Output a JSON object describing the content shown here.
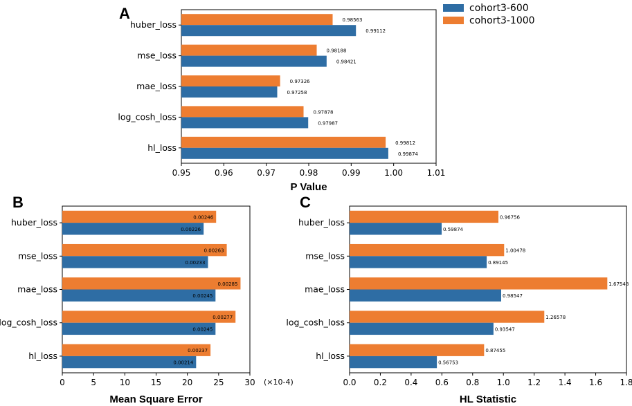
{
  "legend": {
    "items": [
      {
        "label": "cohort3-600",
        "color": "#2e6da4"
      },
      {
        "label": "cohort3-1000",
        "color": "#ed7d31"
      }
    ]
  },
  "chart_data": [
    {
      "panel": "A",
      "type": "bar",
      "orientation": "horizontal",
      "categories": [
        "huber_loss",
        "mse_loss",
        "mae_loss",
        "log_cosh_loss",
        "hl_loss"
      ],
      "series": [
        {
          "name": "cohort3-1000",
          "values": [
            0.98563,
            0.98188,
            0.97326,
            0.97878,
            0.99812
          ],
          "labels": [
            "0.98563",
            "0.98188",
            "0.97326",
            "0.97878",
            "0.99812"
          ]
        },
        {
          "name": "cohort3-600",
          "values": [
            0.99112,
            0.98421,
            0.97258,
            0.97987,
            0.99874
          ],
          "labels": [
            "0.99112",
            "0.98421",
            "0.97258",
            "0.97987",
            "0.99874"
          ]
        }
      ],
      "xlabel": "P Value",
      "xlim": [
        0.95,
        1.01
      ],
      "xticks": [
        0.95,
        0.96,
        0.97,
        0.98,
        0.99,
        1.0,
        1.01
      ],
      "xtick_labels": [
        "0.95",
        "0.96",
        "0.97",
        "0.98",
        "0.99",
        "1.00",
        "1.01"
      ],
      "scale_note": ""
    },
    {
      "panel": "B",
      "type": "bar",
      "orientation": "horizontal",
      "categories": [
        "huber_loss",
        "mse_loss",
        "mae_loss",
        "log_cosh_loss",
        "hl_loss"
      ],
      "series": [
        {
          "name": "cohort3-1000",
          "values": [
            24.6,
            26.3,
            28.5,
            27.7,
            23.7
          ],
          "labels": [
            "0.00246",
            "0.00263",
            "0.00285",
            "0.00277",
            "0.00237"
          ]
        },
        {
          "name": "cohort3-600",
          "values": [
            22.6,
            23.3,
            24.5,
            24.5,
            21.4
          ],
          "labels": [
            "0.00226",
            "0.00233",
            "0.00245",
            "0.00245",
            "0.00214"
          ]
        }
      ],
      "xlabel": "Mean Square Error",
      "xlim": [
        0,
        30
      ],
      "xticks": [
        0,
        5,
        10,
        15,
        20,
        25,
        30
      ],
      "xtick_labels": [
        "0",
        "5",
        "10",
        "15",
        "20",
        "25",
        "30"
      ],
      "scale_note": "(×10-4)"
    },
    {
      "panel": "C",
      "type": "bar",
      "orientation": "horizontal",
      "categories": [
        "huber_loss",
        "mse_loss",
        "mae_loss",
        "log_cosh_loss",
        "hl_loss"
      ],
      "series": [
        {
          "name": "cohort3-1000",
          "values": [
            0.96756,
            1.00478,
            1.67548,
            1.26578,
            0.87455
          ],
          "labels": [
            "0.96756",
            "1.00478",
            "1.67548",
            "1.26578",
            "0.87455"
          ]
        },
        {
          "name": "cohort3-600",
          "values": [
            0.59874,
            0.89145,
            0.98547,
            0.93547,
            0.56753
          ],
          "labels": [
            "0.59874",
            "0.89145",
            "0.98547",
            "0.93547",
            "0.56753"
          ]
        }
      ],
      "xlabel": "HL Statistic",
      "xlim": [
        0,
        1.8
      ],
      "xticks": [
        0.0,
        0.2,
        0.4,
        0.6,
        0.8,
        1.0,
        1.2,
        1.4,
        1.6,
        1.8
      ],
      "xtick_labels": [
        "0.0",
        "0.2",
        "0.4",
        "0.6",
        "0.8",
        "1.0",
        "1.2",
        "1.4",
        "1.6",
        "1.8"
      ],
      "scale_note": ""
    }
  ]
}
